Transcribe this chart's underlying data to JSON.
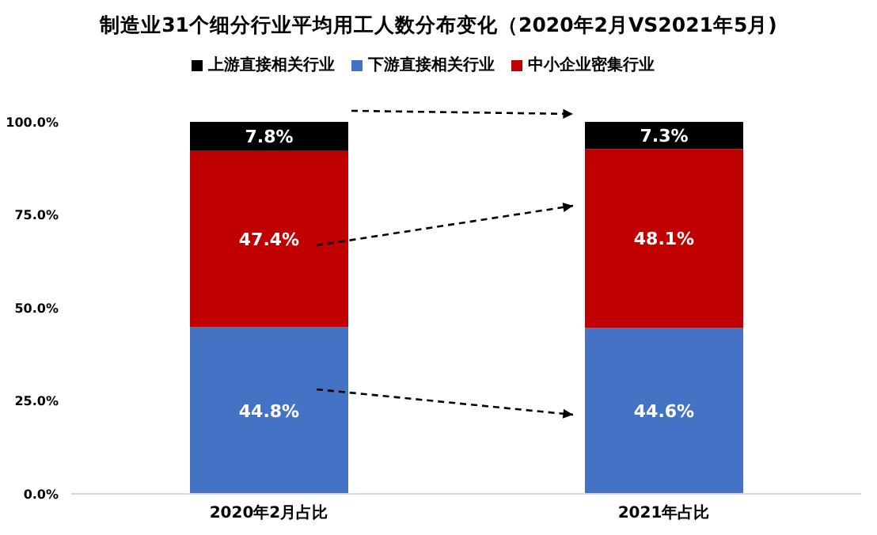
{
  "chart_data": {
    "type": "bar",
    "title": "制造业31个细分行业平均用工人数分布变化（2020年2月VS2021年5月)",
    "categories": [
      "2020年2月占比",
      "2021年占比"
    ],
    "stacked": true,
    "legend": "top",
    "series": [
      {
        "name": "下游直接相关行业",
        "color": "#4472c4",
        "values": [
          44.8,
          44.6
        ],
        "value_labels": [
          "44.8%",
          "44.6%"
        ]
      },
      {
        "name": "中小企业密集行业",
        "color": "#c00000",
        "values": [
          47.4,
          48.1
        ],
        "value_labels": [
          "47.4%",
          "48.1%"
        ]
      },
      {
        "name": "上游直接相关行业",
        "color": "#000000",
        "values": [
          7.8,
          7.3
        ],
        "value_labels": [
          "7.8%",
          "7.3%"
        ]
      }
    ],
    "ylim": [
      0,
      100
    ],
    "yticks": [
      {
        "value": 0,
        "label": "0.0%"
      },
      {
        "value": 25,
        "label": "25.0%"
      },
      {
        "value": 50,
        "label": "50.0%"
      },
      {
        "value": 75,
        "label": "75.0%"
      },
      {
        "value": 100,
        "label": "100.0%"
      }
    ],
    "grid": false
  }
}
